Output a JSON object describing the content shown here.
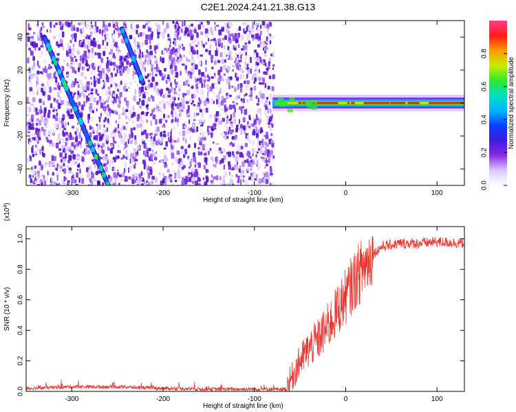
{
  "title": "C2E1.2024.241.21.38.G13",
  "chart_data": [
    {
      "type": "heatmap",
      "xlabel": "Height of straight line (km)",
      "ylabel": "Frequency (Hz)",
      "xlim": [
        -350,
        130
      ],
      "ylim": [
        -50,
        50
      ],
      "xticks": [
        -300,
        -200,
        -100,
        0,
        100
      ],
      "yticks": [
        -40,
        -20,
        0,
        20,
        40
      ],
      "colorbar": {
        "label": "Normalized spectral amplitude",
        "range": [
          0.0,
          1.0
        ],
        "ticks": [
          0.0,
          0.2,
          0.4,
          0.6,
          0.8
        ],
        "colors": [
          "#ffffff",
          "#cc99ff",
          "#7a1fe0",
          "#2a10d0",
          "#0a63ff",
          "#00d0ff",
          "#00d98a",
          "#37e42a",
          "#d3e400",
          "#ff9a00",
          "#ff1a1a",
          "#ff3f8f"
        ]
      },
      "features": {
        "noise_region_x": [
          -350,
          -80
        ],
        "signal_band": {
          "x": [
            -80,
            130
          ],
          "freq": 0
        },
        "tracks": [
          {
            "x": [
              -330,
              -260
            ],
            "freq": [
              40,
              -50
            ]
          },
          {
            "x": [
              -245,
              -222
            ],
            "freq": [
              45,
              12
            ]
          }
        ]
      }
    },
    {
      "type": "line",
      "xlabel": "Height of straight line (km)",
      "ylabel": "SNR (10 * v/v)",
      "scale_label": "(x10",
      "scale_exp": "4",
      "xlim": [
        -350,
        130
      ],
      "ylim": [
        0.0,
        1.08
      ],
      "xticks": [
        -300,
        -200,
        -100,
        0,
        100
      ],
      "yticks": [
        "0.0",
        "0.2",
        "0.4",
        "0.6",
        "0.8",
        "1.0"
      ],
      "series": [
        {
          "color": "#e8362f",
          "x": [
            -350,
            -300,
            -250,
            -200,
            -150,
            -100,
            -65,
            -60,
            -50,
            -40,
            -30,
            -20,
            -10,
            0,
            10,
            20,
            30,
            40,
            50,
            60,
            80,
            100,
            130
          ],
          "y": [
            0.02,
            0.03,
            0.03,
            0.02,
            0.015,
            0.015,
            0.015,
            0.08,
            0.2,
            0.28,
            0.34,
            0.42,
            0.52,
            0.62,
            0.73,
            0.82,
            0.9,
            0.95,
            0.96,
            0.97,
            0.97,
            0.98,
            0.97
          ]
        }
      ]
    }
  ]
}
